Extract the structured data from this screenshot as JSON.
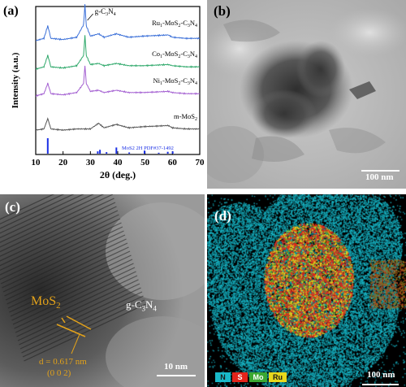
{
  "panels": {
    "a": {
      "label": "(a)",
      "chart_data": {
        "type": "line",
        "xlabel": "2θ (deg.)",
        "ylabel": "Intensity (a.u.)",
        "xlim": [
          10,
          70
        ],
        "xticks": [
          "10",
          "20",
          "30",
          "40",
          "50",
          "60",
          "70"
        ],
        "annotation": "g-C3N4",
        "series": [
          {
            "name": "Ru1-MoS2-C3N4",
            "color": "#3a6fd8",
            "x": [
              10,
              13,
              14.4,
              15.5,
              20,
              25,
              27.5,
              28,
              28.5,
              30,
              33,
              35,
              39.5,
              44,
              49.5,
              58.5,
              60,
              65,
              70
            ],
            "y": [
              0.0,
              0.02,
              0.13,
              0.02,
              0.01,
              0.03,
              0.14,
              0.32,
              0.13,
              0.04,
              0.06,
              0.03,
              0.06,
              0.03,
              0.04,
              0.05,
              0.03,
              0.02,
              0.02
            ]
          },
          {
            "name": "Co1-MoS2-C3N4",
            "color": "#2ea86a",
            "x": [
              10,
              13,
              14.4,
              15.5,
              20,
              25,
              27.5,
              28,
              28.5,
              30,
              33,
              35,
              39.5,
              44,
              49.5,
              58.5,
              60,
              65,
              70
            ],
            "y": [
              0.0,
              0.02,
              0.12,
              0.02,
              0.01,
              0.03,
              0.12,
              0.3,
              0.12,
              0.04,
              0.05,
              0.03,
              0.05,
              0.03,
              0.03,
              0.04,
              0.03,
              0.02,
              0.02
            ]
          },
          {
            "name": "Ni1-MoS2-C3N4",
            "color": "#a35fd1",
            "x": [
              10,
              13,
              14.4,
              15.5,
              20,
              25,
              27.5,
              28,
              28.5,
              30,
              33,
              35,
              39.5,
              44,
              49.5,
              58.5,
              60,
              65,
              70
            ],
            "y": [
              0.0,
              0.02,
              0.11,
              0.02,
              0.01,
              0.03,
              0.11,
              0.27,
              0.11,
              0.04,
              0.05,
              0.03,
              0.05,
              0.03,
              0.03,
              0.04,
              0.03,
              0.02,
              0.02
            ]
          },
          {
            "name": "m-MoS2",
            "color": "#555555",
            "x": [
              10,
              13,
              14.4,
              15.5,
              20,
              25,
              30,
              33,
              35,
              39.5,
              44,
              49.5,
              58.5,
              60,
              65,
              70
            ],
            "y": [
              0.0,
              0.01,
              0.1,
              0.01,
              0.0,
              0.01,
              0.01,
              0.06,
              0.02,
              0.05,
              0.02,
              0.03,
              0.04,
              0.02,
              0.01,
              0.01
            ]
          }
        ],
        "reference": {
          "name": "MoS2 2H PDF#37-1492",
          "color": "#1a2fe6",
          "x": [
            14.4,
            32.7,
            33.5,
            35.9,
            39.5,
            44.2,
            49.8,
            55.0,
            58.3,
            60.1
          ],
          "h": [
            1.0,
            0.15,
            0.25,
            0.1,
            0.4,
            0.08,
            0.2,
            0.06,
            0.12,
            0.15
          ]
        },
        "series_labels": [
          {
            "main": "Ru",
            "sub": "1",
            "rest": "-MoS",
            "sub2": "2",
            "tail": "-C",
            "sub3": "3",
            "tail2": "N",
            "sub4": "4"
          },
          {
            "main": "Co",
            "sub": "1",
            "rest": "-MoS",
            "sub2": "2",
            "tail": "-C",
            "sub3": "3",
            "tail2": "N",
            "sub4": "4"
          },
          {
            "main": "Ni",
            "sub": "1",
            "rest": "-MoS",
            "sub2": "2",
            "tail": "-C",
            "sub3": "3",
            "tail2": "N",
            "sub4": "4"
          },
          {
            "main": "m-MoS",
            "sub": "2",
            "rest": "",
            "sub2": "",
            "tail": "",
            "sub3": "",
            "tail2": "",
            "sub4": ""
          }
        ]
      }
    },
    "b": {
      "label": "(b)",
      "scale_text": "100 nm"
    },
    "c": {
      "label": "(c)",
      "phase1": "MoS2",
      "phase2": "g-C3N4",
      "d_spacing": "d = 0.617 nm",
      "plane": "(0 0 2)",
      "scale_text": "10 nm"
    },
    "d": {
      "label": "(d)",
      "scale_text": "100 nm",
      "legend": [
        {
          "el": "N",
          "bg": "#19b9c9"
        },
        {
          "el": "S",
          "bg": "#e3241b"
        },
        {
          "el": "Mo",
          "bg": "#3aa832"
        },
        {
          "el": "Ru",
          "bg": "#e8d81c"
        }
      ]
    }
  }
}
